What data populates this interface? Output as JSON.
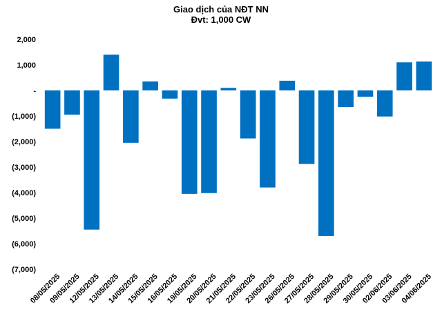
{
  "chart_data": {
    "type": "bar",
    "title": "Giao dịch của NĐT NN",
    "subtitle": "Đvt: 1,000 CW",
    "bar_color": "#0070C0",
    "ylim": [
      -7000,
      2000
    ],
    "yticks": [
      2000,
      1000,
      0,
      -1000,
      -2000,
      -3000,
      -4000,
      -5000,
      -6000,
      -7000
    ],
    "ytick_labels": [
      "2,000",
      "1,000",
      "-",
      "(1,000)",
      "(2,000)",
      "(3,000)",
      "(4,000)",
      "(5,000)",
      "(6,000)",
      "(7,000)"
    ],
    "grid": false,
    "categories": [
      "08/05/2025",
      "09/05/2025",
      "12/05/2025",
      "13/05/2025",
      "14/05/2025",
      "15/05/2025",
      "16/05/2025",
      "19/05/2025",
      "20/05/2025",
      "21/05/2025",
      "22/05/2025",
      "23/05/2025",
      "26/05/2025",
      "27/05/2025",
      "28/05/2025",
      "29/05/2025",
      "30/05/2025",
      "02/06/2025",
      "03/06/2025",
      "04/06/2025"
    ],
    "values": [
      -1500,
      -950,
      -5450,
      1400,
      -2050,
      350,
      -320,
      -4050,
      -4020,
      100,
      -1880,
      -3800,
      380,
      -2880,
      -5700,
      -650,
      -250,
      -1020,
      1100,
      1130
    ]
  }
}
